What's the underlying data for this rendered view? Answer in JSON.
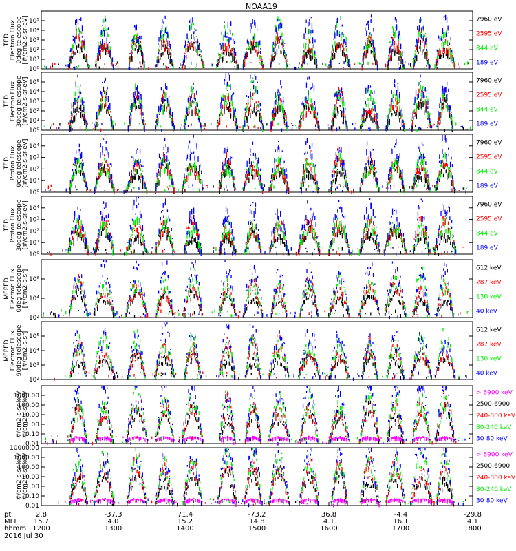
{
  "title": "NOAA19",
  "colors": {
    "black": "#000000",
    "red": "#ff0000",
    "green": "#00ee00",
    "blue": "#0000ff",
    "magenta": "#ff00ff"
  },
  "chart_data": [
    {
      "type": "scatter",
      "ylabel_lines": [
        "TED",
        "Electron Flux",
        "0deg telescope",
        "[#/cm2-s-sr-eV]"
      ],
      "ylim": [
        1,
        1000000
      ],
      "yscale": "log",
      "yticks": [
        {
          "v": 1,
          "label": "10⁰"
        },
        {
          "v": 10,
          "label": "10¹"
        },
        {
          "v": 100,
          "label": "10²"
        },
        {
          "v": 1000,
          "label": "10³"
        },
        {
          "v": 10000,
          "label": "10⁴"
        },
        {
          "v": 100000,
          "label": "10⁵"
        }
      ],
      "legend": [
        {
          "name": "7960 eV",
          "color": "#000000"
        },
        {
          "name": "2595 eV",
          "color": "#ff0000"
        },
        {
          "name": "844 eV",
          "color": "#00ee00"
        },
        {
          "name": "189 eV",
          "color": "#0000ff"
        }
      ]
    },
    {
      "type": "scatter",
      "ylabel_lines": [
        "TED",
        "Electron Flux",
        "30deg telescope",
        "[#/cm2-s-sr-eV]"
      ],
      "ylim": [
        1,
        1000000
      ],
      "yscale": "log",
      "yticks": [
        {
          "v": 1,
          "label": "10⁰"
        },
        {
          "v": 10,
          "label": "10¹"
        },
        {
          "v": 100,
          "label": "10²"
        },
        {
          "v": 1000,
          "label": "10³"
        },
        {
          "v": 10000,
          "label": "10⁴"
        },
        {
          "v": 100000,
          "label": "10⁵"
        }
      ],
      "legend": [
        {
          "name": "7960 eV",
          "color": "#000000"
        },
        {
          "name": "2595 eV",
          "color": "#ff0000"
        },
        {
          "name": "844 eV",
          "color": "#00ee00"
        },
        {
          "name": "189 eV",
          "color": "#0000ff"
        }
      ]
    },
    {
      "type": "scatter",
      "ylabel_lines": [
        "TED",
        "Proton Flux",
        "0deg telescope",
        "[#/cm2-s-sr-eV]"
      ],
      "ylim": [
        1,
        100000
      ],
      "yscale": "log",
      "yticks": [
        {
          "v": 1,
          "label": "10⁰"
        },
        {
          "v": 10,
          "label": "10¹"
        },
        {
          "v": 100,
          "label": "10²"
        },
        {
          "v": 1000,
          "label": "10³"
        },
        {
          "v": 10000,
          "label": "10⁴"
        }
      ],
      "legend": [
        {
          "name": "7960 eV",
          "color": "#000000"
        },
        {
          "name": "2595 eV",
          "color": "#ff0000"
        },
        {
          "name": "844 eV",
          "color": "#00ee00"
        },
        {
          "name": "189 eV",
          "color": "#0000ff"
        }
      ]
    },
    {
      "type": "scatter",
      "ylabel_lines": [
        "TED",
        "Proton Flux",
        "30deg telescope",
        "[#/cm2-s-sr-eV]"
      ],
      "ylim": [
        1,
        100000
      ],
      "yscale": "log",
      "yticks": [
        {
          "v": 1,
          "label": "10⁰"
        },
        {
          "v": 10,
          "label": "10¹"
        },
        {
          "v": 100,
          "label": "10²"
        },
        {
          "v": 1000,
          "label": "10³"
        },
        {
          "v": 10000,
          "label": "10⁴"
        }
      ],
      "legend": [
        {
          "name": "7960 eV",
          "color": "#000000"
        },
        {
          "name": "2595 eV",
          "color": "#ff0000"
        },
        {
          "name": "844 eV",
          "color": "#00ee00"
        },
        {
          "name": "189 eV",
          "color": "#0000ff"
        }
      ]
    },
    {
      "type": "scatter",
      "ylabel_lines": [
        "MEPED",
        "Electron Flux",
        "0deg telescope",
        "[#/cm2-s-sr]"
      ],
      "ylim": [
        100,
        100000000
      ],
      "yscale": "log",
      "yticks": [
        {
          "v": 100,
          "label": "10²"
        },
        {
          "v": 10000,
          "label": "10⁴"
        },
        {
          "v": 1000000,
          "label": "10⁶"
        }
      ],
      "legend": [
        {
          "name": "612 keV",
          "color": "#000000"
        },
        {
          "name": "287 keV",
          "color": "#ff0000"
        },
        {
          "name": "130 keV",
          "color": "#00ee00"
        },
        {
          "name": "40 keV",
          "color": "#0000ff"
        }
      ]
    },
    {
      "type": "scatter",
      "ylabel_lines": [
        "MEPED",
        "Electron Flux",
        "90deg telescope",
        "[#/cm2-s-sr]"
      ],
      "ylim": [
        100,
        1000000
      ],
      "yscale": "log",
      "yticks": [
        {
          "v": 100,
          "label": "10²"
        },
        {
          "v": 1000,
          "label": "10³"
        },
        {
          "v": 10000,
          "label": "10⁴"
        },
        {
          "v": 100000,
          "label": "10⁵"
        }
      ],
      "legend": [
        {
          "name": "612 keV",
          "color": "#000000"
        },
        {
          "name": "287 keV",
          "color": "#ff0000"
        },
        {
          "name": "130 keV",
          "color": "#00ee00"
        },
        {
          "name": "40 keV",
          "color": "#0000ff"
        }
      ]
    },
    {
      "type": "scatter",
      "ylabel_lines": [
        "#/cm2-s-sr-keV",
        "#/cm2-s-sr-keV"
      ],
      "ylim": [
        0.01,
        10000
      ],
      "yscale": "log",
      "yticks": [
        {
          "v": 0.01,
          "label": "0.01"
        },
        {
          "v": 0.1,
          "label": "0.10"
        },
        {
          "v": 1,
          "label": "1.00"
        },
        {
          "v": 10,
          "label": "10.00"
        },
        {
          "v": 100,
          "label": "100.00"
        },
        {
          "v": 1000,
          "label": "1000.00"
        }
      ],
      "legend": [
        {
          "name": "> 6900 keV",
          "color": "#ff00ff"
        },
        {
          "name": "2500-6900",
          "color": "#000000"
        },
        {
          "name": "240-800 keV",
          "color": "#ff0000"
        },
        {
          "name": "80-240 keV",
          "color": "#00ee00"
        },
        {
          "name": "30-80 keV",
          "color": "#0000ff"
        }
      ]
    },
    {
      "type": "scatter",
      "ylabel_lines": [
        "#/cm2-s-sr-keV",
        "#/cm2-s-sr-keV"
      ],
      "ylim": [
        0.01,
        10000
      ],
      "yscale": "log",
      "yticks": [
        {
          "v": 0.01,
          "label": "0.01"
        },
        {
          "v": 0.1,
          "label": "0.10"
        },
        {
          "v": 1,
          "label": "1.00"
        },
        {
          "v": 10,
          "label": "10.00"
        },
        {
          "v": 100,
          "label": "100.00"
        },
        {
          "v": 1000,
          "label": "1000.00"
        },
        {
          "v": 10000,
          "label": "10000.00"
        }
      ],
      "legend": [
        {
          "name": "> 6900 keV",
          "color": "#ff00ff"
        },
        {
          "name": "2500-6900",
          "color": "#000000"
        },
        {
          "name": "240-800 keV",
          "color": "#ff0000"
        },
        {
          "name": "80-240 keV",
          "color": "#00ee00"
        },
        {
          "name": "30-80 keV",
          "color": "#0000ff"
        }
      ]
    }
  ],
  "x_axis": {
    "row_labels": [
      "pt",
      "MLT",
      "hhmm"
    ],
    "ticks": [
      {
        "pt": "2.8",
        "mlt": "15.7",
        "hhmm": "1200"
      },
      {
        "pt": "-37.3",
        "mlt": "4.0",
        "hhmm": "1300"
      },
      {
        "pt": "71.4",
        "mlt": "15.2",
        "hhmm": "1400"
      },
      {
        "pt": "-73.2",
        "mlt": "14.8",
        "hhmm": "1500"
      },
      {
        "pt": "36.8",
        "mlt": "4.1",
        "hhmm": "1600"
      },
      {
        "pt": "-4.4",
        "mlt": "16.1",
        "hhmm": "1700"
      },
      {
        "pt": "-29.8",
        "mlt": "4.1",
        "hhmm": "1800"
      }
    ],
    "date": "2016 Jul 30"
  }
}
